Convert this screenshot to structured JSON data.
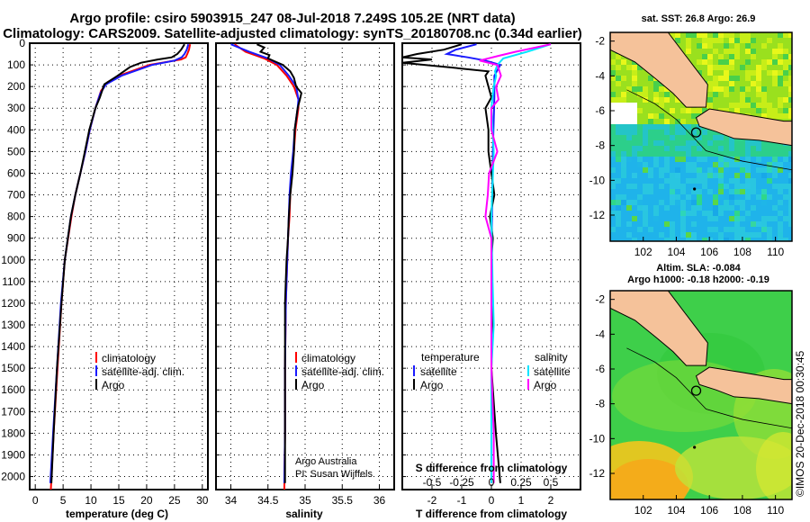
{
  "header": {
    "title_line1": "Argo profile: csiro 5903915_247 08-Jul-2018 7.249S 105.2E (NRT data)",
    "title_line2": "Climatology: CARS2009. Satellite-adjusted climatology: synTS_20180708.nc (0.34d earlier)"
  },
  "colors": {
    "argo": "#000000",
    "climatology": "#ff0000",
    "satellite": "#1a1aff",
    "sat_salinity": "#00e5ff",
    "clim_salinity": "#ff00ff",
    "land": "#f5c29a"
  },
  "depth_axis": {
    "ticks": [
      "0",
      "100",
      "200",
      "300",
      "400",
      "500",
      "600",
      "700",
      "800",
      "900",
      "1000",
      "1100",
      "1200",
      "1300",
      "1400",
      "1500",
      "1600",
      "1700",
      "1800",
      "1900",
      "2000"
    ]
  },
  "chart_data": [
    {
      "type": "line",
      "id": "temperature",
      "xlabel": "temperature (deg C)",
      "xlim": [
        -1,
        31
      ],
      "ylim": [
        0,
        2060
      ],
      "xticks": [
        "0",
        "5",
        "10",
        "15",
        "20",
        "25",
        "30"
      ],
      "legend": {
        "placement": "bottom-left",
        "entries": [
          "climatology",
          "satellite-adj. clim.",
          "Argo"
        ]
      },
      "series": [
        {
          "name": "climatology",
          "color": "#ff0000",
          "depth": [
            5,
            30,
            50,
            65,
            75,
            100,
            150,
            180,
            220,
            300,
            400,
            500,
            600,
            700,
            800,
            1000,
            1200,
            1500,
            1800,
            2060
          ],
          "values": [
            27.8,
            27.6,
            27.3,
            27.0,
            26.2,
            20.5,
            15.0,
            13.0,
            11.8,
            10.8,
            9.8,
            9.0,
            8.1,
            7.2,
            6.5,
            5.3,
            4.7,
            4.0,
            3.3,
            2.8
          ]
        },
        {
          "name": "satellite-adj. clim.",
          "color": "#1a1aff",
          "depth": [
            5,
            30,
            50,
            65,
            80,
            100,
            150,
            190,
            230,
            300,
            400,
            500,
            600,
            700,
            800,
            1000,
            1200,
            1500,
            1800,
            2030
          ],
          "values": [
            27.5,
            27.2,
            26.8,
            26.3,
            25.0,
            21.0,
            15.5,
            12.7,
            11.7,
            10.8,
            9.8,
            9.0,
            8.1,
            7.2,
            6.4,
            5.3,
            4.6,
            3.9,
            3.2,
            2.7
          ]
        },
        {
          "name": "Argo",
          "color": "#000000",
          "depth": [
            5,
            30,
            50,
            65,
            75,
            90,
            110,
            150,
            190,
            250,
            300,
            400,
            500,
            600,
            700,
            800,
            1000,
            1200,
            1500,
            1800,
            2030
          ],
          "values": [
            26.8,
            26.2,
            25.5,
            24.5,
            22.0,
            19.0,
            17.0,
            14.8,
            12.4,
            11.6,
            10.8,
            9.7,
            8.9,
            8.1,
            7.2,
            6.4,
            5.3,
            4.7,
            3.9,
            3.3,
            2.9
          ]
        }
      ]
    },
    {
      "type": "line",
      "id": "salinity",
      "xlabel": "salinity",
      "xlim": [
        33.8,
        36.2
      ],
      "ylim": [
        0,
        2060
      ],
      "xticks": [
        "34",
        "34.5",
        "35",
        "35.5",
        "36"
      ],
      "legend": {
        "placement": "bottom-left",
        "entries": [
          "climatology",
          "satellite-adj. clim.",
          "Argo"
        ]
      },
      "annotation": [
        "Argo Australia",
        "PI: Susan Wijffels"
      ],
      "series": [
        {
          "name": "climatology",
          "color": "#ff0000",
          "depth": [
            5,
            40,
            70,
            100,
            150,
            200,
            260,
            300,
            400,
            500,
            600,
            700,
            800,
            900,
            1000,
            1200,
            1500,
            1800,
            2060
          ],
          "values": [
            34.05,
            34.2,
            34.45,
            34.62,
            34.75,
            34.85,
            34.91,
            34.91,
            34.87,
            34.85,
            34.82,
            34.8,
            34.79,
            34.77,
            34.76,
            34.74,
            34.73,
            34.73,
            34.72
          ]
        },
        {
          "name": "satellite-adj. clim.",
          "color": "#1a1aff",
          "depth": [
            5,
            40,
            70,
            100,
            150,
            200,
            260,
            300,
            400,
            500,
            600,
            700,
            800,
            900,
            1000,
            1200,
            1500,
            1800,
            2030
          ],
          "values": [
            34.0,
            34.25,
            34.5,
            34.66,
            34.78,
            34.88,
            34.91,
            34.9,
            34.86,
            34.84,
            34.81,
            34.79,
            34.78,
            34.77,
            34.76,
            34.74,
            34.73,
            34.73,
            34.72
          ]
        },
        {
          "name": "Argo",
          "color": "#000000",
          "depth": [
            5,
            20,
            40,
            55,
            70,
            85,
            100,
            130,
            160,
            200,
            230,
            260,
            300,
            400,
            500,
            600,
            700,
            800,
            900,
            1000,
            1200,
            1500,
            1800,
            2030
          ],
          "values": [
            34.35,
            34.45,
            34.4,
            34.52,
            34.5,
            34.6,
            34.7,
            34.8,
            34.85,
            34.88,
            34.95,
            34.93,
            34.9,
            34.86,
            34.85,
            34.83,
            34.8,
            34.78,
            34.77,
            34.75,
            34.73,
            34.73,
            34.73,
            34.73
          ]
        }
      ]
    },
    {
      "type": "line",
      "id": "difference",
      "xlabel": "T difference from climatology",
      "xlabel2": "S difference from climatology",
      "xlim": [
        -3,
        3
      ],
      "ylim": [
        0,
        2060
      ],
      "xticks": [
        "-2",
        "-1",
        "0",
        "1",
        "2"
      ],
      "xticks2": [
        "-0.5",
        "-0.25",
        "0",
        "0.25",
        "0.5"
      ],
      "legend": {
        "placement": "bottom",
        "temperature_title": "temperature",
        "salinity_title": "salinity",
        "entries": [
          "satellite",
          "Argo",
          "satellite",
          "Argo"
        ]
      },
      "series": [
        {
          "name": "temperature satellite",
          "color": "#1a1aff",
          "depth": [
            5,
            30,
            50,
            65,
            80,
            100,
            150,
            250,
            500,
            1000,
            1500,
            2030
          ],
          "values": [
            -0.5,
            -1.2,
            -1.5,
            -0.8,
            -0.2,
            0.3,
            0.1,
            0.1,
            0.05,
            0.0,
            0.0,
            0.0
          ]
        },
        {
          "name": "temperature Argo",
          "color": "#000000",
          "depth": [
            5,
            30,
            50,
            65,
            75,
            90,
            110,
            130,
            150,
            200,
            250,
            300,
            400,
            500,
            600,
            700,
            800,
            900,
            1000,
            1200,
            1500,
            1800,
            2030
          ],
          "values": [
            -1.0,
            -1.6,
            -2.5,
            -3.0,
            -2.0,
            -3.0,
            -1.5,
            -0.1,
            -0.2,
            -0.1,
            0.0,
            -0.2,
            -0.1,
            -0.1,
            0.0,
            0.1,
            -0.05,
            0.05,
            0.0,
            0.05,
            0.0,
            0.15,
            0.3
          ]
        },
        {
          "name": "salinity satellite",
          "color": "#00e5ff",
          "depth": [
            5,
            40,
            70,
            100,
            130,
            150,
            200,
            300,
            500,
            800,
            1100,
            1300,
            1500,
            2030
          ],
          "values": [
            0.5,
            0.3,
            0.1,
            0.05,
            0.03,
            0.04,
            0.02,
            0.0,
            0.02,
            0.0,
            0.01,
            0.02,
            0.0,
            0.0
          ]
        },
        {
          "name": "salinity Argo",
          "color": "#ff00ff",
          "depth": [
            5,
            40,
            60,
            80,
            100,
            150,
            200,
            260,
            300,
            400,
            500,
            600,
            700,
            800,
            900,
            1000,
            1200,
            1500,
            1800,
            2030
          ],
          "values": [
            0.5,
            0.2,
            0.05,
            -0.1,
            0.05,
            0.08,
            0.04,
            0.06,
            0.0,
            0.0,
            0.05,
            -0.02,
            -0.03,
            -0.05,
            0.0,
            0.0,
            0.0,
            0.0,
            0.02,
            0.02
          ]
        }
      ]
    },
    {
      "type": "heatmap",
      "id": "sst_map",
      "title": "sat. SST: 26.8 Argo: 26.9",
      "xlim": [
        100,
        111
      ],
      "ylim": [
        -13.5,
        -1.5
      ],
      "xticks": [
        "102",
        "104",
        "106",
        "108",
        "110"
      ],
      "yticks": [
        "-2",
        "-4",
        "-6",
        "-8",
        "-10",
        "-12"
      ],
      "argo_position": {
        "lon": 105.2,
        "lat": -7.249
      }
    },
    {
      "type": "heatmap",
      "id": "sla_map",
      "title_line1": "Altim. SLA: -0.084",
      "title_line2": "Argo h1000: -0.18 h2000: -0.19",
      "xlim": [
        100,
        111
      ],
      "ylim": [
        -13.5,
        -1.5
      ],
      "xticks": [
        "102",
        "104",
        "106",
        "108",
        "110"
      ],
      "yticks": [
        "-2",
        "-4",
        "-6",
        "-8",
        "-10",
        "-12"
      ],
      "argo_position": {
        "lon": 105.2,
        "lat": -7.249
      }
    }
  ],
  "watermark": "©IMOS 20-Dec-2018 00:30:45"
}
